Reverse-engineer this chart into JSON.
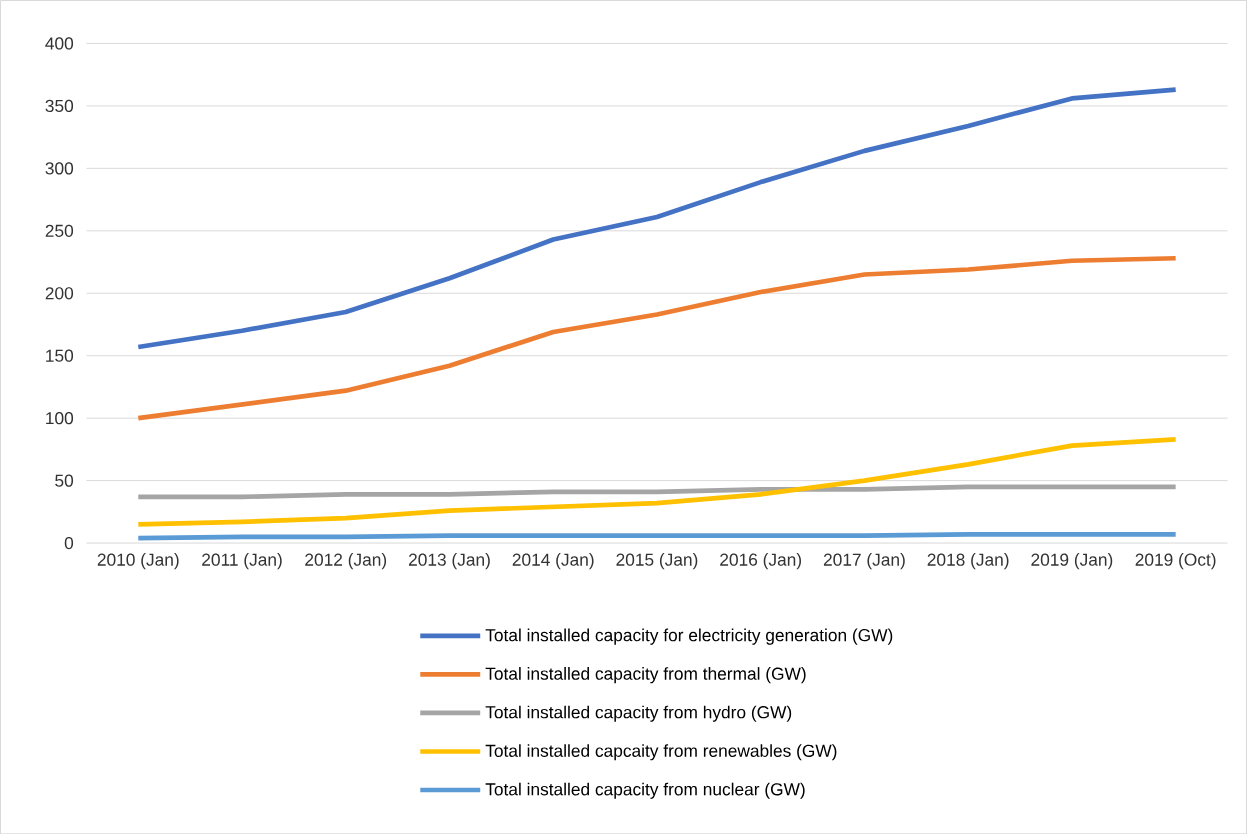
{
  "chart_data": {
    "type": "line",
    "categories": [
      "2010 (Jan)",
      "2011 (Jan)",
      "2012 (Jan)",
      "2013 (Jan)",
      "2014 (Jan)",
      "2015 (Jan)",
      "2016 (Jan)",
      "2017 (Jan)",
      "2018 (Jan)",
      "2019 (Jan)",
      "2019 (Oct)"
    ],
    "series": [
      {
        "name": "Total installed capacity for electricity generation (GW)",
        "color": "#4472c4",
        "values": [
          157,
          170,
          185,
          212,
          243,
          261,
          289,
          314,
          334,
          356,
          363
        ]
      },
      {
        "name": "Total installed capacity from thermal (GW)",
        "color": "#ed7d31",
        "values": [
          100,
          111,
          122,
          142,
          169,
          183,
          201,
          215,
          219,
          226,
          228
        ]
      },
      {
        "name": "Total installed capacity from hydro (GW)",
        "color": "#a5a5a5",
        "values": [
          37,
          37,
          39,
          39,
          41,
          41,
          43,
          43,
          45,
          45,
          45
        ]
      },
      {
        "name": "Total installed capcaity from renewables (GW)",
        "color": "#ffc000",
        "values": [
          15,
          17,
          20,
          26,
          29,
          32,
          39,
          50,
          63,
          78,
          83
        ]
      },
      {
        "name": "Total installed capacity from nuclear (GW)",
        "color": "#5b9bd5",
        "values": [
          4,
          5,
          5,
          6,
          6,
          6,
          6,
          6,
          7,
          7,
          7
        ]
      }
    ],
    "ylim": [
      0,
      400
    ],
    "yticks": [
      0,
      50,
      100,
      150,
      200,
      250,
      300,
      350,
      400
    ],
    "grid": "y",
    "legend": "bottom"
  }
}
